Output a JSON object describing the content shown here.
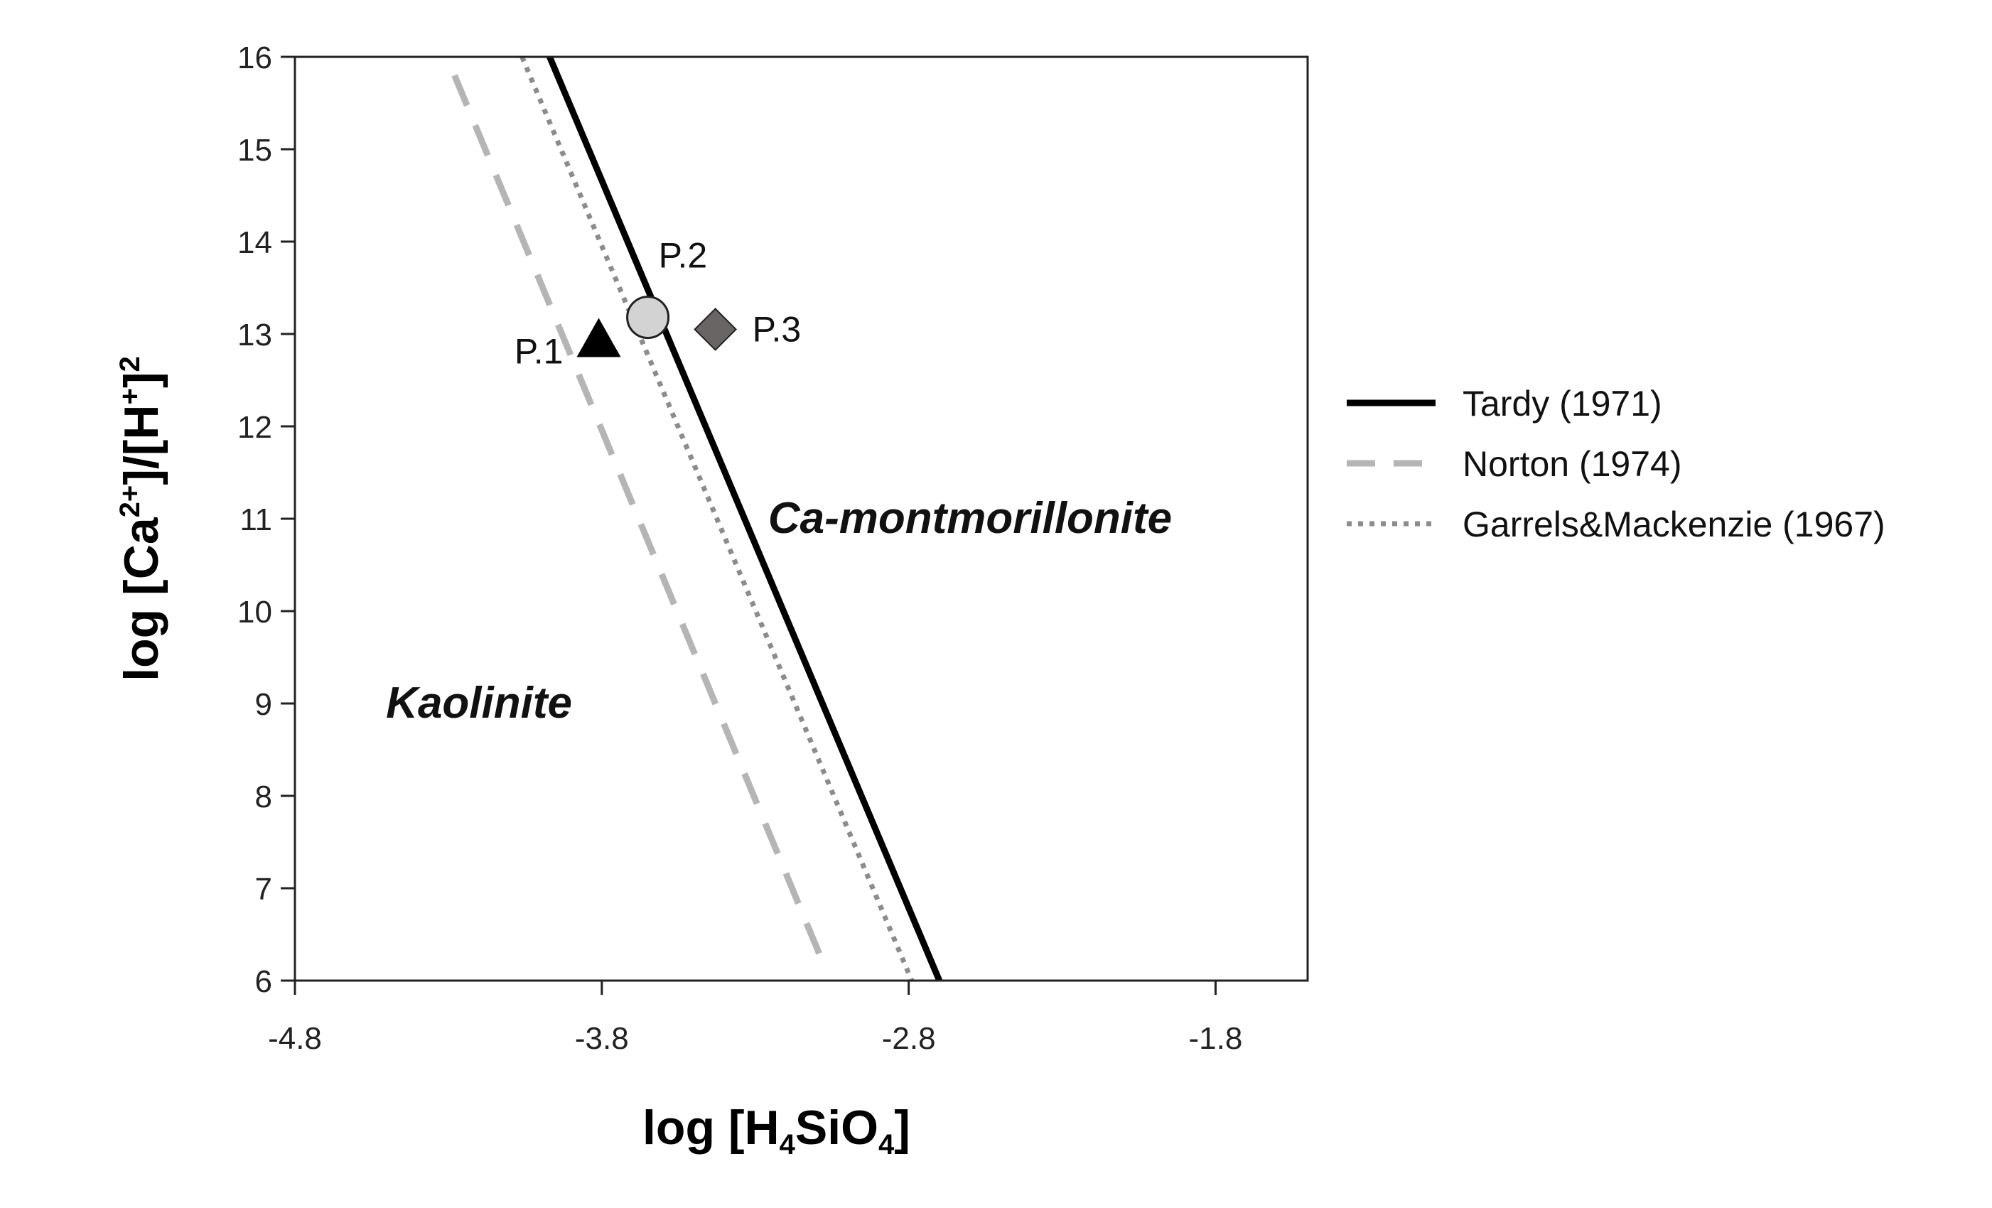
{
  "chart_data": {
    "type": "line",
    "xlabel": {
      "main": "log [H",
      "sub1": "4",
      "mid": "SiO",
      "sub2": "4",
      "end": "]"
    },
    "ylabel": {
      "main": "log [Ca",
      "sup1": "2+",
      "mid": "]/[H",
      "sup2": "+",
      "end": "]",
      "sup3": "2"
    },
    "xlim": [
      -4.8,
      -1.5
    ],
    "ylim": [
      6,
      16
    ],
    "x_ticks": [
      -4.8,
      -3.8,
      -2.8,
      -1.8
    ],
    "x_tick_labels": [
      "-4.8",
      "-3.8",
      "-2.8",
      "-1.8"
    ],
    "y_ticks": [
      6,
      7,
      8,
      9,
      10,
      11,
      12,
      13,
      14,
      15,
      16
    ],
    "y_tick_labels": [
      "6",
      "7",
      "8",
      "9",
      "10",
      "11",
      "12",
      "13",
      "14",
      "15",
      "16"
    ],
    "grid": false,
    "legend_position": "right",
    "series": [
      {
        "name": "Tardy (1971)",
        "style": "solid",
        "color": "#000000",
        "x": [
          -3.97,
          -2.7
        ],
        "y": [
          16,
          6
        ]
      },
      {
        "name": "Norton (1974)",
        "style": "dashed",
        "color": "#b5b5b5",
        "x": [
          -4.28,
          -3.08
        ],
        "y": [
          15.8,
          6.2
        ]
      },
      {
        "name": "Garrels&Mackenzie (1967)",
        "style": "dotted",
        "color": "#8c8c8c",
        "x": [
          -4.06,
          -2.79
        ],
        "y": [
          16,
          6
        ]
      }
    ],
    "points": [
      {
        "label": "P.1",
        "marker": "triangle",
        "color": "#000000",
        "x": -3.81,
        "y": 12.95
      },
      {
        "label": "P.2",
        "marker": "circle",
        "color": "#d3d3d3",
        "x": -3.65,
        "y": 13.18
      },
      {
        "label": "P.3",
        "marker": "diamond",
        "color": "#6a6565",
        "x": -3.43,
        "y": 13.05
      }
    ],
    "regions": [
      {
        "label": "Kaolinite",
        "x": -4.2,
        "y": 9.0
      },
      {
        "label": "Ca-montmorillonite",
        "x": -2.6,
        "y": 11.0
      }
    ]
  }
}
